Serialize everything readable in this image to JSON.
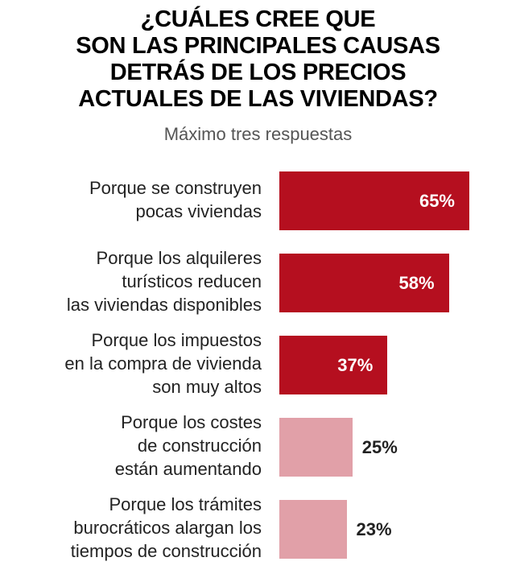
{
  "chart_data": {
    "type": "bar",
    "orientation": "horizontal",
    "title": "¿CUÁLES CREE QUE\nSON LAS PRINCIPALES CAUSAS\nDETRÁS DE LOS PRECIOS\nACTUALES DE LAS VIVIENDAS?",
    "subtitle": "Máximo tres respuestas",
    "categories": [
      "Porque se construyen\npocas viviendas",
      "Porque los alquileres\nturísticos reducen\nlas viviendas disponibles",
      "Porque los impuestos\nen la compra de vivienda\nson muy altos",
      "Porque los costes\nde construcción\nestán aumentando",
      "Porque los trámites\nburocráticos alargan los\ntiempos de construcción"
    ],
    "values": [
      65,
      58,
      37,
      25,
      23
    ],
    "value_labels": [
      "65%",
      "58%",
      "37%",
      "25%",
      "23%"
    ],
    "unit": "%",
    "xlim": [
      0,
      65
    ],
    "colors": {
      "highlight": "#b50f1f",
      "muted": "#e1a0a8"
    },
    "highlighted": [
      true,
      true,
      true,
      false,
      false
    ],
    "grid": false
  }
}
